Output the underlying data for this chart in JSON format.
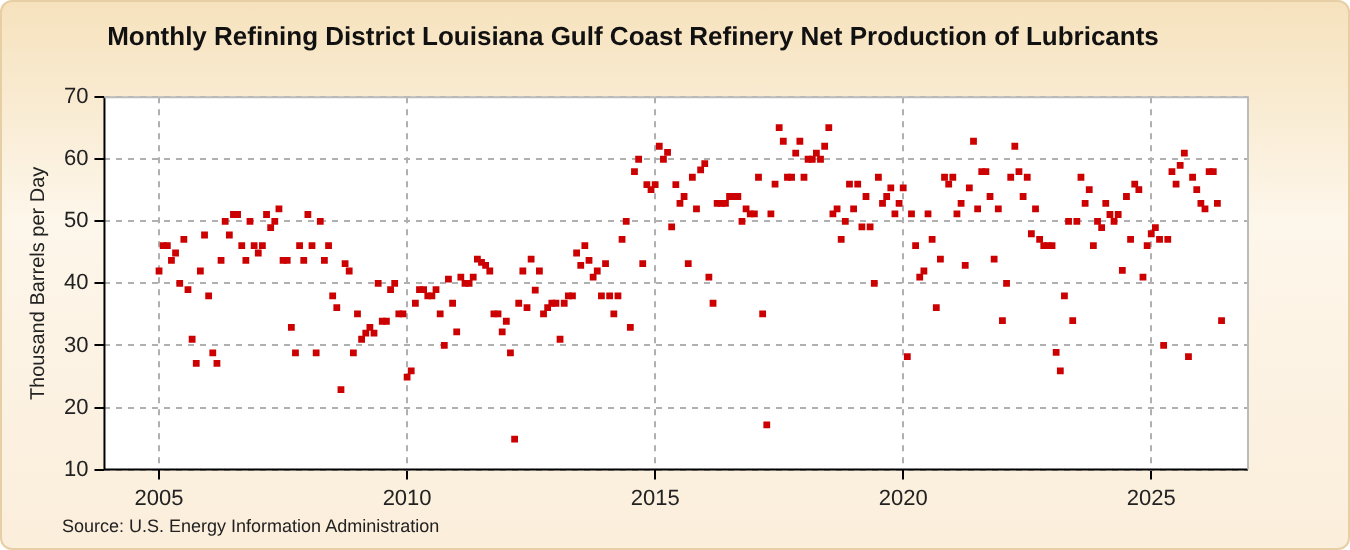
{
  "chart_data": {
    "type": "scatter",
    "title": "Monthly Refining District Louisiana Gulf Coast Refinery Net Production of Lubricants",
    "ylabel": "Thousand Barrels per Day",
    "annotations": [
      "Source: U.S. Energy Information Administration"
    ],
    "xlim": [
      2003.9,
      2026.95
    ],
    "xticks": [
      2005,
      2010,
      2015,
      2020,
      2025
    ],
    "ylim": [
      10,
      70
    ],
    "yticks": [
      10,
      20,
      30,
      40,
      50,
      60,
      70
    ],
    "grid": true,
    "marker": "square",
    "color": "#cc0000",
    "x": [
      2005,
      2005.083,
      2005.167,
      2005.25,
      2005.333,
      2005.417,
      2005.5,
      2005.583,
      2005.667,
      2005.75,
      2005.833,
      2005.917,
      2006,
      2006.083,
      2006.167,
      2006.25,
      2006.333,
      2006.417,
      2006.5,
      2006.583,
      2006.667,
      2006.75,
      2006.833,
      2006.917,
      2007,
      2007.083,
      2007.167,
      2007.25,
      2007.333,
      2007.417,
      2007.5,
      2007.583,
      2007.667,
      2007.75,
      2007.833,
      2007.917,
      2008,
      2008.083,
      2008.167,
      2008.25,
      2008.333,
      2008.417,
      2008.5,
      2008.583,
      2008.667,
      2008.75,
      2008.833,
      2008.917,
      2009,
      2009.083,
      2009.167,
      2009.25,
      2009.333,
      2009.417,
      2009.5,
      2009.583,
      2009.667,
      2009.75,
      2009.833,
      2009.917,
      2010,
      2010.083,
      2010.167,
      2010.25,
      2010.333,
      2010.417,
      2010.5,
      2010.583,
      2010.667,
      2010.75,
      2010.833,
      2010.917,
      2011,
      2011.083,
      2011.167,
      2011.25,
      2011.333,
      2011.417,
      2011.5,
      2011.583,
      2011.667,
      2011.75,
      2011.833,
      2011.917,
      2012,
      2012.083,
      2012.167,
      2012.25,
      2012.333,
      2012.417,
      2012.5,
      2012.583,
      2012.667,
      2012.75,
      2012.833,
      2012.917,
      2013,
      2013.083,
      2013.167,
      2013.25,
      2013.333,
      2013.417,
      2013.5,
      2013.583,
      2013.667,
      2013.75,
      2013.833,
      2013.917,
      2014,
      2014.083,
      2014.167,
      2014.25,
      2014.333,
      2014.417,
      2014.5,
      2014.583,
      2014.667,
      2014.75,
      2014.833,
      2014.917,
      2015,
      2015.083,
      2015.167,
      2015.25,
      2015.333,
      2015.417,
      2015.5,
      2015.583,
      2015.667,
      2015.75,
      2015.833,
      2015.917,
      2016,
      2016.083,
      2016.167,
      2016.25,
      2016.333,
      2016.417,
      2016.5,
      2016.583,
      2016.667,
      2016.75,
      2016.833,
      2016.917,
      2017,
      2017.083,
      2017.167,
      2017.25,
      2017.333,
      2017.417,
      2017.5,
      2017.583,
      2017.667,
      2017.75,
      2017.833,
      2017.917,
      2018,
      2018.083,
      2018.167,
      2018.25,
      2018.333,
      2018.417,
      2018.5,
      2018.583,
      2018.667,
      2018.75,
      2018.833,
      2018.917,
      2019,
      2019.083,
      2019.167,
      2019.25,
      2019.333,
      2019.417,
      2019.5,
      2019.583,
      2019.667,
      2019.75,
      2019.833,
      2019.917,
      2020,
      2020.083,
      2020.167,
      2020.25,
      2020.333,
      2020.417,
      2020.5,
      2020.583,
      2020.667,
      2020.75,
      2020.833,
      2020.917,
      2021,
      2021.083,
      2021.167,
      2021.25,
      2021.333,
      2021.417,
      2021.5,
      2021.583,
      2021.667,
      2021.75,
      2021.833,
      2021.917,
      2022,
      2022.083,
      2022.167,
      2022.25,
      2022.333,
      2022.417,
      2022.5,
      2022.583,
      2022.667,
      2022.75,
      2022.833,
      2022.917,
      2023,
      2023.083,
      2023.167,
      2023.25,
      2023.333,
      2023.417,
      2023.5,
      2023.583,
      2023.667,
      2023.75,
      2023.833,
      2023.917,
      2024,
      2024.083,
      2024.167,
      2024.25,
      2024.333,
      2024.417,
      2024.5,
      2024.583,
      2024.667,
      2024.75,
      2024.833,
      2024.917,
      2025,
      2025.083,
      2025.167,
      2025.25,
      2025.333,
      2025.417,
      2025.5,
      2025.583,
      2025.667,
      2025.75,
      2025.833,
      2025.917,
      2026,
      2026.083,
      2026.167,
      2026.25,
      2026.333,
      2026.417
    ],
    "values": [
      42,
      46.1,
      46.1,
      43.7,
      44.9,
      40,
      47.1,
      39,
      31,
      27.1,
      42,
      47.8,
      38,
      28.8,
      27.1,
      43.7,
      50,
      47.8,
      51.1,
      51.1,
      46.1,
      43.7,
      50,
      46.1,
      44.9,
      46.1,
      51.1,
      49,
      50,
      52,
      43.7,
      43.7,
      32.9,
      28.8,
      46.1,
      43.7,
      51.1,
      46.1,
      28.8,
      50,
      43.7,
      46.1,
      38,
      36.1,
      22.9,
      43.2,
      42,
      28.8,
      35.1,
      31,
      32,
      32.9,
      32,
      40,
      33.9,
      33.9,
      39,
      40,
      35.1,
      35.1,
      24.9,
      25.9,
      36.8,
      39,
      39,
      38,
      38,
      39,
      35.1,
      30,
      40.7,
      36.8,
      32.2,
      41,
      40,
      40,
      41,
      43.9,
      43.4,
      42.9,
      42,
      35.1,
      35.1,
      32.2,
      33.9,
      28.8,
      14.9,
      36.8,
      42,
      36.1,
      43.9,
      38.9,
      42,
      35.1,
      36.1,
      36.8,
      36.8,
      31,
      36.8,
      38,
      38,
      44.9,
      42.9,
      46.1,
      43.7,
      41,
      42,
      38,
      43.2,
      38,
      35.1,
      38,
      47.1,
      50,
      32.9,
      58,
      60,
      43.2,
      55.9,
      55.1,
      55.9,
      62.1,
      60,
      61.1,
      49.1,
      55.9,
      52.9,
      54,
      43.2,
      57.1,
      52,
      58.3,
      59.3,
      41,
      36.8,
      52.9,
      52.9,
      52.9,
      54,
      54,
      54,
      50,
      52,
      51.2,
      51.2,
      57.1,
      35.1,
      17.2,
      51.2,
      56,
      65.1,
      62.9,
      57.1,
      57.1,
      61,
      62.9,
      57.1,
      60,
      60,
      61,
      60,
      62.1,
      65.1,
      51.2,
      52,
      47.1,
      50,
      56,
      52,
      56,
      49.1,
      54,
      49.1,
      40,
      57.1,
      52.9,
      54,
      55.4,
      51.2,
      52.9,
      55.4,
      28.2,
      51.2,
      46.1,
      41,
      42,
      51.2,
      47.1,
      36.1,
      43.9,
      57.1,
      56,
      57.1,
      51.2,
      52.9,
      42.9,
      55.4,
      62.9,
      52,
      58,
      58,
      54,
      43.9,
      52,
      34,
      40,
      57.1,
      62.1,
      58,
      54,
      57.1,
      48,
      52,
      47.1,
      46.1,
      46.1,
      46.1,
      28.9,
      25.9,
      38,
      50,
      34,
      50,
      57.1,
      52.9,
      55.1,
      46.1,
      50,
      49,
      52.9,
      51.1,
      50,
      51.1,
      42.1,
      54,
      47.1,
      56,
      55.1,
      41,
      46.1,
      48,
      49,
      47.1,
      30,
      47.1,
      58,
      56,
      59,
      61,
      28.2,
      57.1,
      55.1,
      52.9,
      52,
      58,
      58,
      52.9,
      34
    ]
  }
}
